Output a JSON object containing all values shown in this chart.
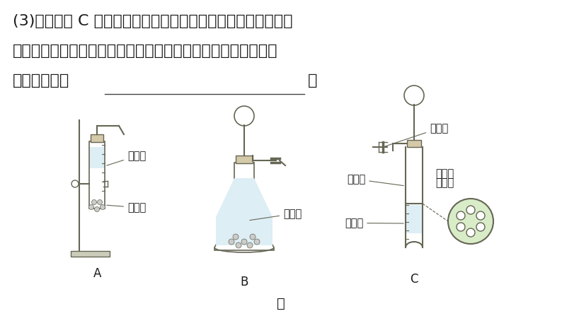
{
  "bg_color": "#ffffff",
  "text_color": "#1a1a1a",
  "apparatus_outline": "#666655",
  "apparatus_fill": "#d4c9a8",
  "green_fill": "#d8ecc8",
  "liquid_fill": "#ddeef5",
  "title_line1": "(3)按图甲中 C 所示将大理石放在多孔塑料隔板上，若打开弹簧",
  "title_line2": "夹，通过长颈漏斗注入稀盐酸，使酸液刚好浸没大理石，此时观",
  "title_line3": "察到的现象是",
  "period": "。",
  "label_A": "A",
  "label_B": "B",
  "label_C": "C",
  "label_jia": "甲",
  "label_xys": "稀盐酸",
  "label_dls": "大理石",
  "label_tankuaijia": "弹簧夹",
  "label_duokongsu": "多孔塑",
  "label_liaogeban": "料隔板",
  "fontsize_main": 16,
  "fontsize_sub": 10.5,
  "fontsize_letter": 12
}
